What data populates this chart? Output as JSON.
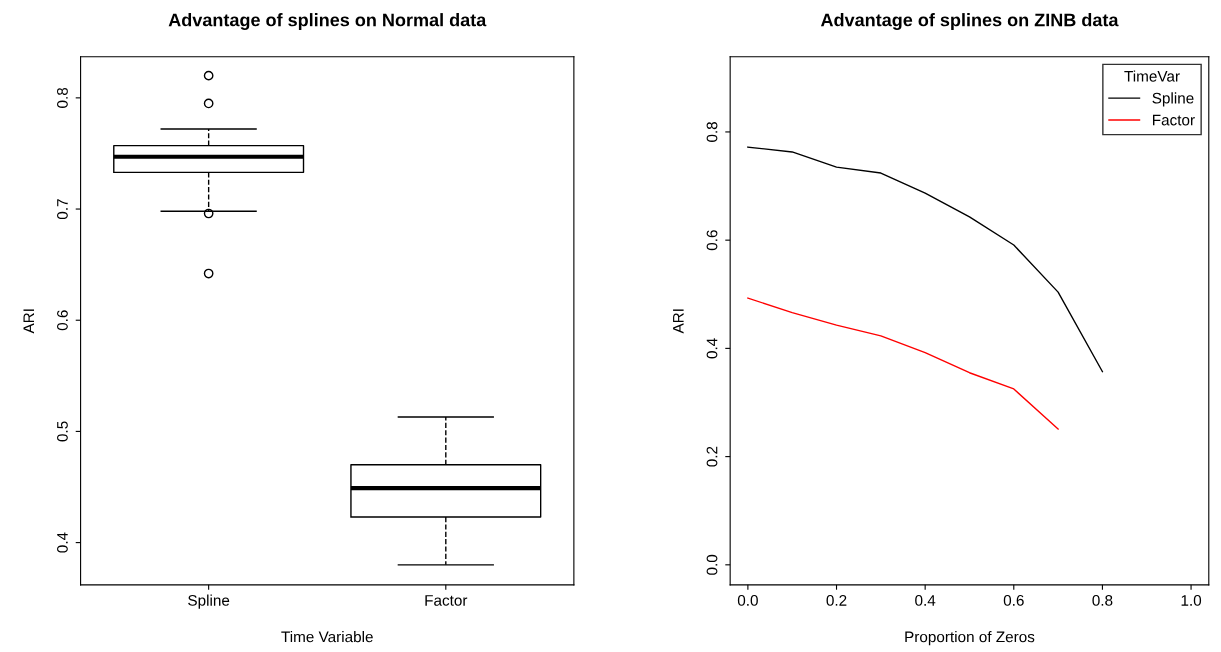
{
  "chart_data": [
    {
      "type": "box",
      "title": "Advantage of splines on Normal data",
      "xlabel": "Time Variable",
      "ylabel": "ARI",
      "categories": [
        "Spline",
        "Factor"
      ],
      "ylim": [
        0.362,
        0.837
      ],
      "yticks": [
        0.4,
        0.5,
        0.6,
        0.7,
        0.8
      ],
      "grid": false,
      "boxes": [
        {
          "low": 0.698,
          "q1": 0.733,
          "median": 0.747,
          "q3": 0.757,
          "high": 0.772,
          "outliers": [
            0.82,
            0.795,
            0.696,
            0.642
          ]
        },
        {
          "low": 0.38,
          "q1": 0.423,
          "median": 0.449,
          "q3": 0.47,
          "high": 0.513
        }
      ]
    },
    {
      "type": "line",
      "title": "Advantage of splines on ZINB data",
      "xlabel": "Proportion of Zeros",
      "ylabel": "ARI",
      "legend_title": "TimeVar",
      "legend": "top right",
      "grid": false,
      "marker": "none",
      "line_style": "solid",
      "xlim": [
        -0.04,
        1.04
      ],
      "xticks": [
        {
          "value": 0,
          "label": "0.0"
        },
        0.2,
        0.4,
        0.6,
        0.8,
        {
          "value": 1,
          "label": "1.0"
        }
      ],
      "ylim": [
        -0.037,
        0.939
      ],
      "yticks": [
        {
          "value": 0,
          "label": "0.0"
        },
        0.2,
        0.4,
        0.6,
        0.8
      ],
      "series": [
        {
          "name": "Spline",
          "color": "#000000",
          "x": [
            0,
            0.1,
            0.2,
            0.3,
            0.4,
            0.5,
            0.6,
            0.7,
            0.8
          ],
          "values": [
            0.772,
            0.763,
            0.735,
            0.724,
            0.687,
            0.643,
            0.591,
            0.504,
            0.357
          ]
        },
        {
          "name": "Factor",
          "color": "#ff0000",
          "x": [
            0,
            0.1,
            0.2,
            0.3,
            0.4,
            0.5,
            0.6,
            0.7
          ],
          "values": [
            0.493,
            0.466,
            0.443,
            0.423,
            0.392,
            0.355,
            0.325,
            0.251
          ]
        }
      ]
    }
  ]
}
